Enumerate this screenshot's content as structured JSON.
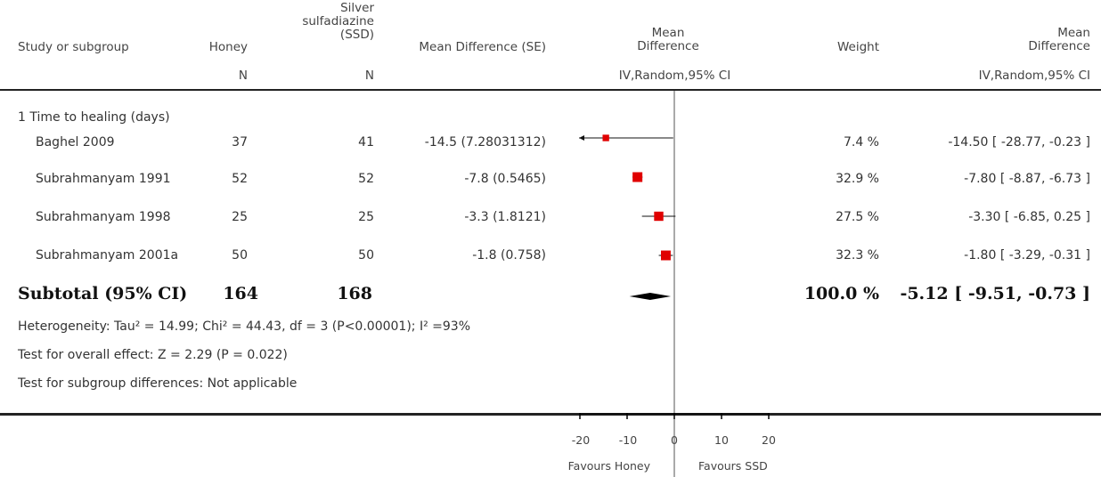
{
  "header": {
    "study": "Study or subgroup",
    "honey": "Honey",
    "ssd_line1": "Silver",
    "ssd_line2": "sulfadiazine",
    "ssd_line3": "(SSD)",
    "md_se": "Mean Difference (SE)",
    "md_line1": "Mean",
    "md_line2": "Difference",
    "weight": "Weight",
    "md2_line1": "Mean",
    "md2_line2": "Difference",
    "n_honey": "N",
    "n_ssd": "N",
    "method_plot": "IV,Random,95% CI",
    "method_col": "IV,Random,95% CI"
  },
  "subgroup_label": "1 Time to healing (days)",
  "studies": [
    {
      "name": "Baghel 2009",
      "honey_n": "37",
      "ssd_n": "41",
      "md_se": "-14.5 (7.28031312)",
      "weight": "7.4 %",
      "ci": "-14.50 [ -28.77, -0.23 ]"
    },
    {
      "name": "Subrahmanyam 1991",
      "honey_n": "52",
      "ssd_n": "52",
      "md_se": "-7.8 (0.5465)",
      "weight": "32.9 %",
      "ci": "-7.80 [ -8.87, -6.73 ]"
    },
    {
      "name": "Subrahmanyam 1998",
      "honey_n": "25",
      "ssd_n": "25",
      "md_se": "-3.3 (1.8121)",
      "weight": "27.5 %",
      "ci": "-3.30 [ -6.85, 0.25 ]"
    },
    {
      "name": "Subrahmanyam 2001a",
      "honey_n": "50",
      "ssd_n": "50",
      "md_se": "-1.8 (0.758)",
      "weight": "32.3 %",
      "ci": "-1.80 [ -3.29, -0.31 ]"
    }
  ],
  "subtotal": {
    "label": "Subtotal (95% CI)",
    "honey_n": "164",
    "ssd_n": "168",
    "weight": "100.0 %",
    "ci": "-5.12 [ -9.51, -0.73 ]"
  },
  "notes": {
    "heterogeneity": "Heterogeneity: Tau² = 14.99; Chi² = 44.43, df = 3 (P<0.00001); I² =93%",
    "overall": "Test for overall effect: Z = 2.29 (P = 0.022)",
    "subgroup_diff": "Test for subgroup differences: Not applicable"
  },
  "axis": {
    "ticks": [
      "-20",
      "-10",
      "0",
      "10",
      "20"
    ],
    "favours_left": "Favours Honey",
    "favours_right": "Favours SSD"
  },
  "colors": {
    "marker": "#e00000",
    "line": "#111111"
  },
  "chart_data": {
    "type": "forest",
    "xlim": [
      -20,
      20
    ],
    "x_ticks": [
      -20,
      -10,
      0,
      10,
      20
    ],
    "studies": [
      {
        "name": "Baghel 2009",
        "md": -14.5,
        "lo": -28.77,
        "hi": -0.23,
        "weight": 7.4
      },
      {
        "name": "Subrahmanyam 1991",
        "md": -7.8,
        "lo": -8.87,
        "hi": -6.73,
        "weight": 32.9
      },
      {
        "name": "Subrahmanyam 1998",
        "md": -3.3,
        "lo": -6.85,
        "hi": 0.25,
        "weight": 27.5
      },
      {
        "name": "Subrahmanyam 2001a",
        "md": -1.8,
        "lo": -3.29,
        "hi": -0.31,
        "weight": 32.3
      }
    ],
    "pooled": {
      "md": -5.12,
      "lo": -9.51,
      "hi": -0.73
    }
  }
}
